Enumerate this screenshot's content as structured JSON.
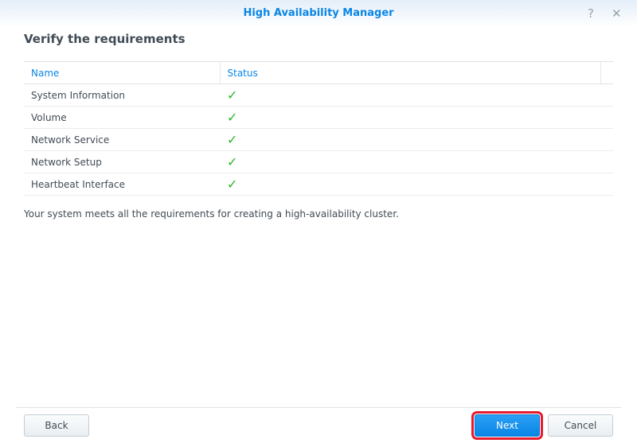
{
  "window": {
    "title": "High Availability Manager",
    "help_icon": "help-icon",
    "close_icon": "close-icon"
  },
  "page": {
    "heading": "Verify the requirements",
    "message": "Your system meets all the requirements for creating a high-availability cluster."
  },
  "table": {
    "columns": [
      "Name",
      "Status"
    ],
    "rows": [
      {
        "name": "System Information",
        "status": "✓"
      },
      {
        "name": "Volume",
        "status": "✓"
      },
      {
        "name": "Network Service",
        "status": "✓"
      },
      {
        "name": "Network Setup",
        "status": "✓"
      },
      {
        "name": "Heartbeat Interface",
        "status": "✓"
      }
    ]
  },
  "buttons": {
    "back": "Back",
    "next": "Next",
    "cancel": "Cancel"
  },
  "colors": {
    "accent": "#0a86e6",
    "check": "#2bb52b",
    "highlight": "#e8192c"
  }
}
